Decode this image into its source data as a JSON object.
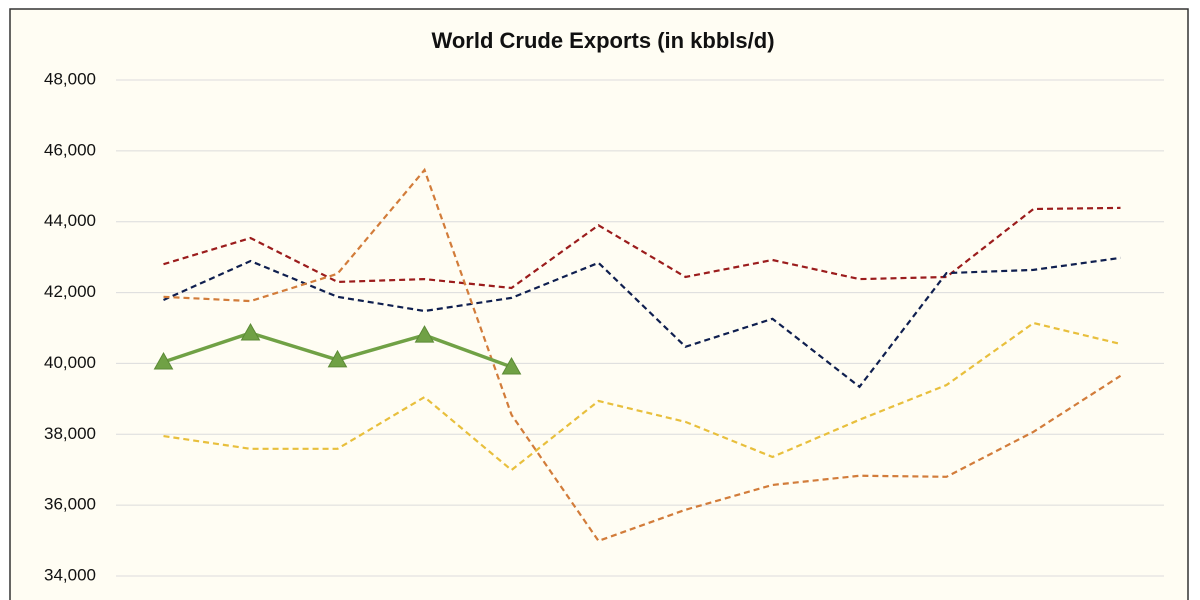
{
  "chart_data": {
    "type": "line",
    "title": "World Crude Exports (in kbbls/d)",
    "categories": [
      null,
      null,
      null,
      null,
      null,
      null,
      null,
      null,
      null,
      null,
      null,
      null
    ],
    "series": [
      {
        "color": "#9b1c1c",
        "dash": true,
        "values": [
          42800,
          43540,
          42300,
          42380,
          42130,
          43900,
          42440,
          42920,
          42380,
          42440,
          44360,
          44390
        ]
      },
      {
        "color": "#0f1f4f",
        "dash": true,
        "values": [
          41790,
          42890,
          41880,
          41480,
          41850,
          42840,
          40470,
          41260,
          39340,
          42550,
          42640,
          42980
        ]
      },
      {
        "color": "#d27c3a",
        "dash": true,
        "values": [
          41880,
          41760,
          42530,
          45460,
          38550,
          34990,
          35870,
          36570,
          36830,
          36800,
          38070,
          39650
        ]
      },
      {
        "color": "#e8bf3c",
        "dash": true,
        "values": [
          37950,
          37590,
          37590,
          39050,
          36990,
          38940,
          38350,
          37360,
          38410,
          39390,
          41140,
          40550
        ]
      },
      {
        "color": "#70a145",
        "dash": false,
        "marker": "triangle",
        "values": [
          40040,
          40860,
          40100,
          40800,
          39900,
          null,
          null,
          null,
          null,
          null,
          null,
          null
        ]
      }
    ],
    "ylim": [
      34000,
      48000
    ],
    "yticks": [
      {
        "value": 34000,
        "label": "34,000"
      },
      {
        "value": 36000,
        "label": "36,000"
      },
      {
        "value": 38000,
        "label": "38,000"
      },
      {
        "value": 40000,
        "label": "40,000"
      },
      {
        "value": 42000,
        "label": "42,000"
      },
      {
        "value": 44000,
        "label": "44,000"
      },
      {
        "value": 46000,
        "label": "46,000"
      },
      {
        "value": 48000,
        "label": "48,000"
      }
    ],
    "grid": true
  }
}
